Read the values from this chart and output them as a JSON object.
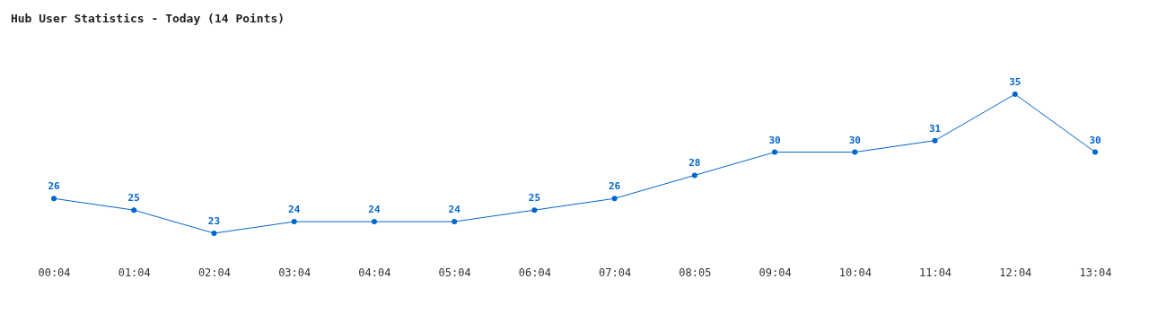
{
  "chart_data": {
    "type": "line",
    "title": "Hub User Statistics - Today (14 Points)",
    "categories": [
      "00:04",
      "01:04",
      "02:04",
      "03:04",
      "04:04",
      "05:04",
      "06:04",
      "07:04",
      "08:05",
      "09:04",
      "10:04",
      "11:04",
      "12:04",
      "13:04"
    ],
    "values": [
      26,
      25,
      23,
      24,
      24,
      24,
      25,
      26,
      28,
      30,
      30,
      31,
      35,
      30
    ],
    "color": "#0066cc",
    "marker": "circle",
    "data_labels": true
  }
}
